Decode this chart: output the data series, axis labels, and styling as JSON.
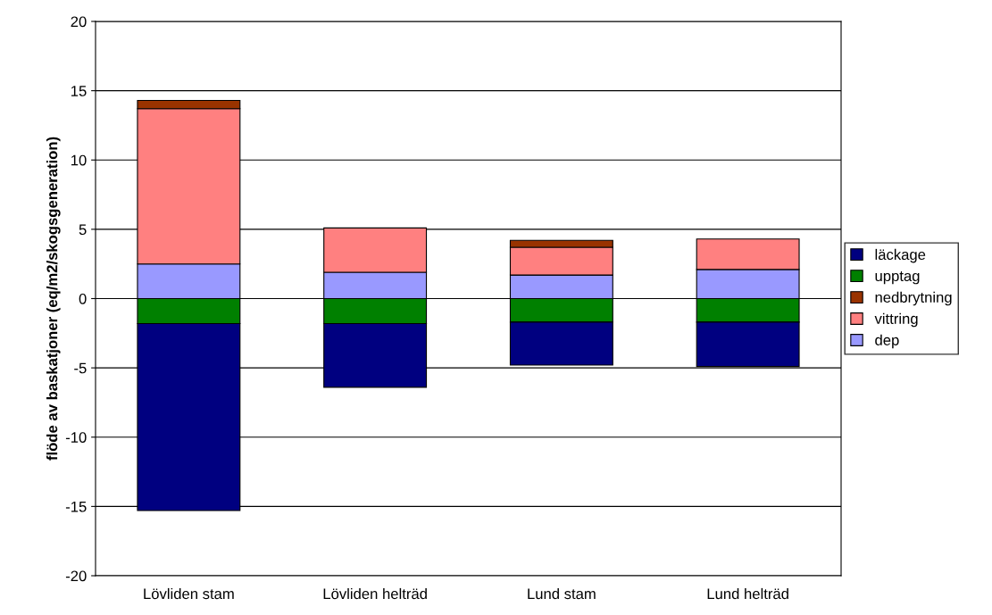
{
  "chart_data": {
    "type": "bar",
    "stacked": true,
    "ylabel": "flöde av baskatjoner (eq/m2/skogsgeneration)",
    "categories": [
      "Lövliden stam",
      "Lövliden helträd",
      "Lund stam",
      "Lund helträd"
    ],
    "series": [
      {
        "name": "dep",
        "color": "#9999ff",
        "values": [
          2.5,
          1.9,
          1.7,
          2.1
        ]
      },
      {
        "name": "vittring",
        "color": "#ff8080",
        "values": [
          11.2,
          3.2,
          2.0,
          2.2
        ]
      },
      {
        "name": "nedbrytning",
        "color": "#993300",
        "values": [
          0.6,
          null,
          0.5,
          null
        ]
      },
      {
        "name": "upptag",
        "color": "#008000",
        "values": [
          -1.8,
          -1.8,
          -1.7,
          -1.7
        ]
      },
      {
        "name": "läckage",
        "color": "#000080",
        "values": [
          -13.5,
          -4.6,
          -3.1,
          -3.2
        ]
      }
    ],
    "ylim": [
      -20,
      20
    ],
    "yticks": [
      -20,
      -15,
      -10,
      -5,
      0,
      5,
      10,
      15,
      20
    ],
    "grid": "y",
    "legend": "right"
  }
}
